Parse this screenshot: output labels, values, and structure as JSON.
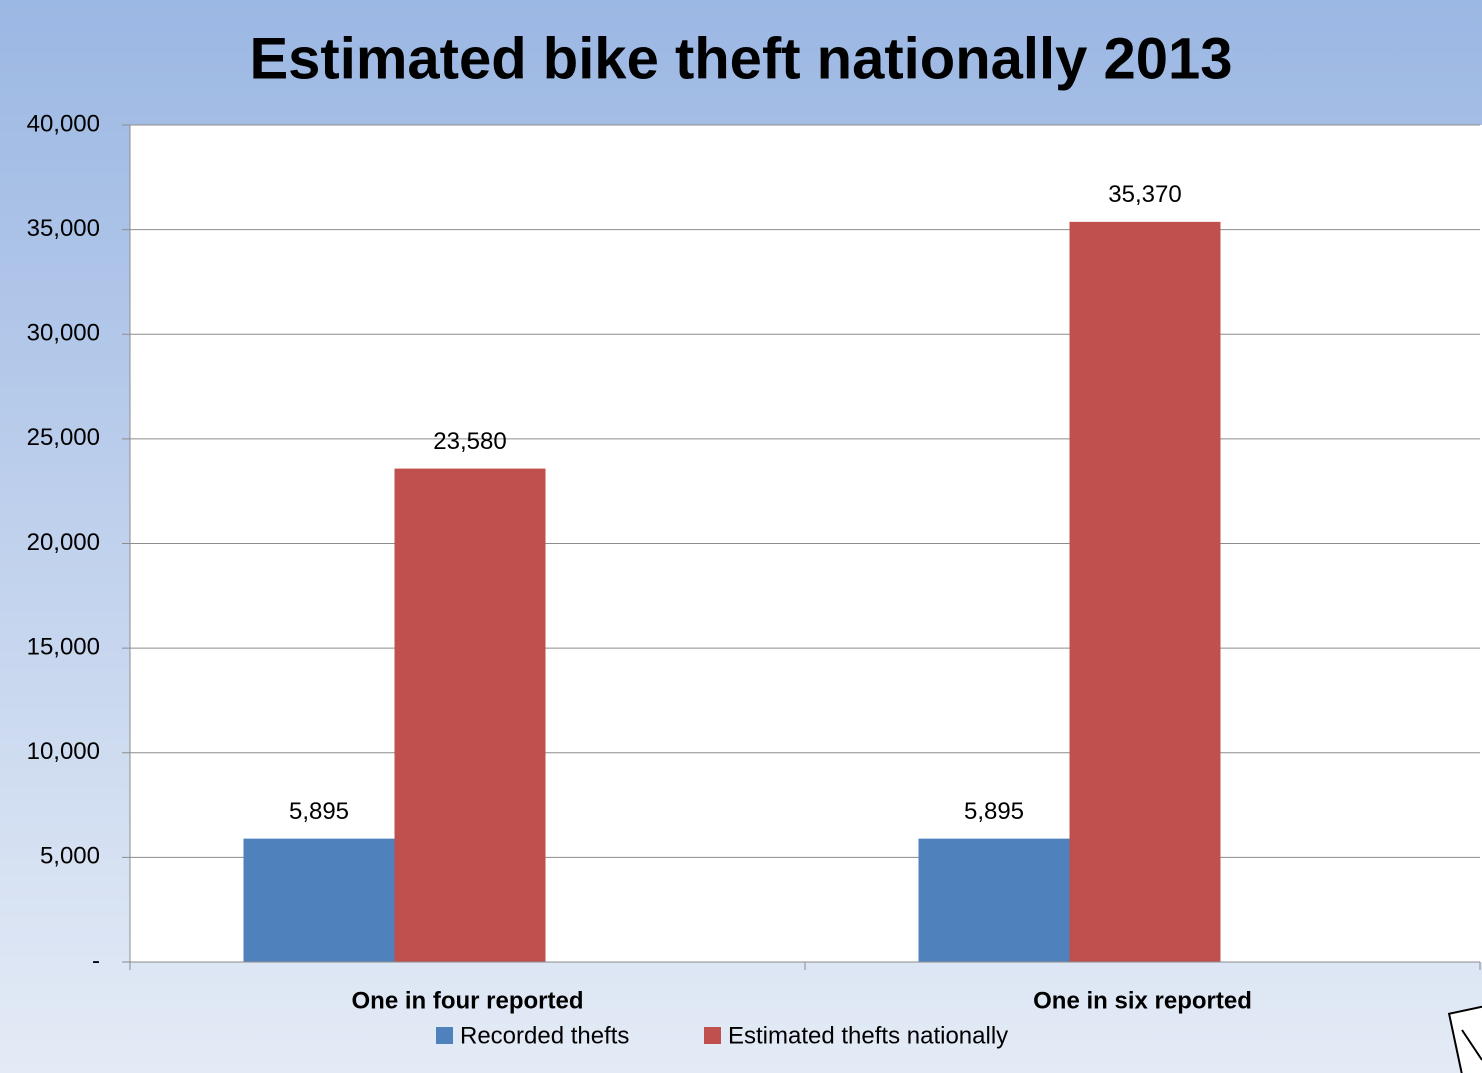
{
  "chart_data": {
    "type": "bar",
    "title": "Estimated bike theft nationally 2013",
    "categories": [
      "One in four reported",
      "One in six reported"
    ],
    "series": [
      {
        "name": "Recorded thefts",
        "color": "#4f81bd",
        "values": [
          5895,
          5895
        ],
        "value_labels": [
          "5,895",
          "5,895"
        ]
      },
      {
        "name": "Estimated thefts nationally",
        "color": "#c0504d",
        "values": [
          23580,
          35370
        ],
        "value_labels": [
          "23,580",
          "35,370"
        ]
      }
    ],
    "ylim": [
      0,
      40000
    ],
    "yticks": [
      {
        "value": 0,
        "label": "-"
      },
      {
        "value": 5000,
        "label": "5,000"
      },
      {
        "value": 10000,
        "label": "10,000"
      },
      {
        "value": 15000,
        "label": "15,000"
      },
      {
        "value": 20000,
        "label": "20,000"
      },
      {
        "value": 25000,
        "label": "25,000"
      },
      {
        "value": 30000,
        "label": "30,000"
      },
      {
        "value": 35000,
        "label": "35,000"
      },
      {
        "value": 40000,
        "label": "40,000"
      }
    ],
    "grid": true,
    "legend": "bottom"
  }
}
